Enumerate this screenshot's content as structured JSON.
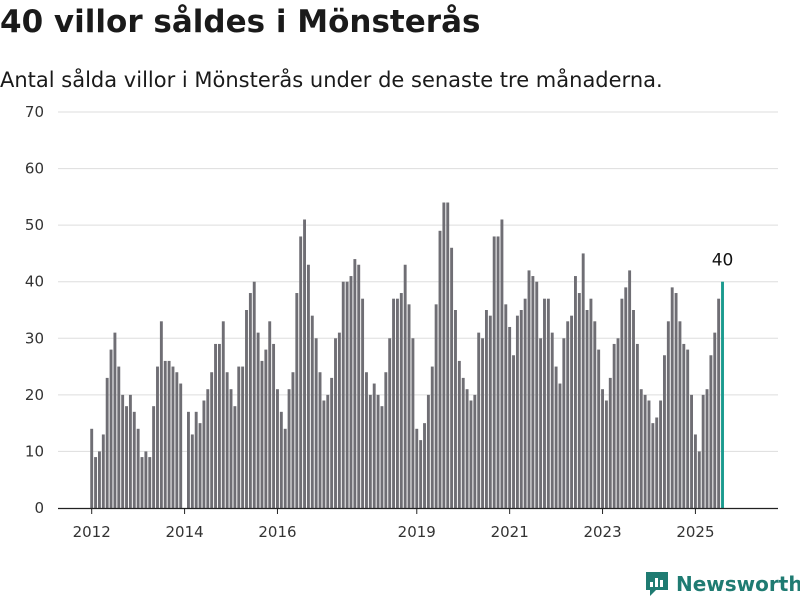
{
  "title": "40 villor såldes i Mönsterås",
  "subtitle": "Antal sålda villor i Mönsterås under de senaste tre månaderna.",
  "brand": "Newsworthy",
  "colors": {
    "bar": "#6f6e74",
    "highlight": "#1a9a8e",
    "grid": "#dddddd",
    "axis": "#222222"
  },
  "chart_data": {
    "type": "bar",
    "ylim": [
      0,
      70
    ],
    "yticks": [
      0,
      10,
      20,
      30,
      40,
      50,
      60,
      70
    ],
    "xticks": [
      "2012",
      "2014",
      "2016",
      "2019",
      "2021",
      "2023",
      "2025"
    ],
    "x_start": "2012-01",
    "x_end": "2025-06",
    "highlight_label": "40",
    "values": [
      14,
      9,
      10,
      13,
      23,
      28,
      31,
      25,
      20,
      18,
      20,
      17,
      14,
      9,
      10,
      9,
      18,
      25,
      33,
      26,
      26,
      25,
      24,
      22,
      0,
      17,
      13,
      17,
      15,
      19,
      21,
      24,
      29,
      29,
      33,
      24,
      21,
      18,
      25,
      25,
      35,
      38,
      40,
      31,
      26,
      28,
      33,
      29,
      21,
      17,
      14,
      21,
      24,
      38,
      48,
      51,
      43,
      34,
      30,
      24,
      19,
      20,
      23,
      30,
      31,
      40,
      40,
      41,
      44,
      43,
      37,
      24,
      20,
      22,
      20,
      18,
      24,
      30,
      37,
      37,
      38,
      43,
      36,
      30,
      14,
      12,
      15,
      20,
      25,
      36,
      49,
      54,
      54,
      46,
      35,
      26,
      23,
      21,
      19,
      20,
      31,
      30,
      35,
      34,
      48,
      48,
      51,
      36,
      32,
      27,
      34,
      35,
      37,
      42,
      41,
      40,
      30,
      37,
      37,
      31,
      25,
      22,
      30,
      33,
      34,
      41,
      38,
      45,
      35,
      37,
      33,
      28,
      21,
      19,
      23,
      29,
      30,
      37,
      39,
      42,
      35,
      29,
      21,
      20,
      19,
      15,
      16,
      19,
      27,
      33,
      39,
      38,
      33,
      29,
      28,
      20,
      13,
      10,
      20,
      21,
      27,
      31,
      37,
      40
    ]
  }
}
